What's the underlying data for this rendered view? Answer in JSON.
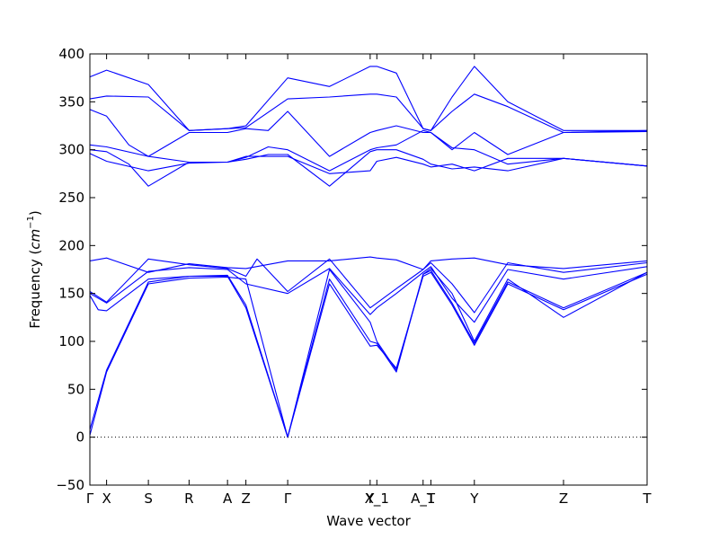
{
  "chart_data": {
    "type": "line",
    "xlabel": "Wave vector",
    "ylabel_text": "Frequency (",
    "ylabel_unit": "cm",
    "ylabel_exp": "−1",
    "ylabel_close": ")",
    "ylim": [
      -50,
      400
    ],
    "yticks": [
      -50,
      0,
      50,
      100,
      150,
      200,
      250,
      300,
      350,
      400
    ],
    "xlim": [
      0,
      100
    ],
    "x_ticks": [
      {
        "label": "Γ",
        "x": 0
      },
      {
        "label": "X",
        "x": 3
      },
      {
        "label": "S",
        "x": 10.5
      },
      {
        "label": "R",
        "x": 17.8
      },
      {
        "label": "A",
        "x": 24.7
      },
      {
        "label": "Z",
        "x": 28
      },
      {
        "label": "Γ",
        "x": 35.5
      },
      {
        "label": "Y",
        "x": 50.3
      },
      {
        "label": "X_1",
        "x": 51.5
      },
      {
        "label": "A_1",
        "x": 59.8
      },
      {
        "label": "T",
        "x": 61.2
      },
      {
        "label": "Y",
        "x": 69
      },
      {
        "label": "Z",
        "x": 85
      },
      {
        "label": "T",
        "x": 100
      }
    ],
    "zero_line": 0,
    "line_color": "#0000ff",
    "series": [
      {
        "x": [
          0,
          3,
          10.5,
          17.8,
          24.7,
          28,
          35.5,
          43,
          50.3,
          51.5,
          55,
          59.8,
          61.2,
          65,
          69,
          75,
          85,
          100
        ],
        "values": [
          376,
          383,
          368,
          320,
          322,
          325,
          375,
          366,
          387,
          387,
          380,
          322,
          320,
          355,
          387,
          350,
          320,
          320
        ]
      },
      {
        "x": [
          0,
          3,
          10.5,
          17.8,
          24.7,
          28,
          35.5,
          43,
          50.3,
          51.5,
          55,
          59.8,
          61.2,
          65,
          69,
          75,
          85,
          100
        ],
        "values": [
          353,
          356,
          355,
          320,
          322,
          323,
          353,
          355,
          358,
          358,
          355,
          322,
          320,
          340,
          358,
          345,
          318,
          319
        ]
      },
      {
        "x": [
          0,
          3,
          7,
          10.5,
          17.8,
          24.7,
          28,
          32,
          35.5,
          43,
          50.3,
          51.5,
          55,
          59.8,
          61.2,
          65,
          69,
          75,
          85,
          100
        ],
        "values": [
          342,
          335,
          305,
          293,
          318,
          318,
          322,
          320,
          340,
          293,
          318,
          320,
          325,
          318,
          318,
          300,
          318,
          295,
          318,
          320
        ]
      },
      {
        "x": [
          0,
          3,
          10.5,
          17.8,
          24.7,
          28,
          32,
          35.5,
          43,
          50.3,
          51.5,
          55,
          59.8,
          61.2,
          65,
          69,
          75,
          85,
          100
        ],
        "values": [
          305,
          303,
          293,
          287,
          287,
          292,
          303,
          300,
          278,
          300,
          302,
          305,
          320,
          318,
          302,
          300,
          285,
          291,
          283
        ]
      },
      {
        "x": [
          0,
          3,
          7,
          10.5,
          17.8,
          24.7,
          28,
          32,
          35.5,
          43,
          50.3,
          51.5,
          55,
          59.8,
          61.2,
          65,
          69,
          75,
          85,
          100
        ],
        "values": [
          300,
          298,
          285,
          262,
          287,
          287,
          290,
          295,
          295,
          262,
          298,
          300,
          300,
          290,
          285,
          280,
          282,
          278,
          291,
          283
        ]
      },
      {
        "x": [
          0,
          3,
          10.5,
          17.8,
          24.7,
          28,
          35.5,
          43,
          50.3,
          51.5,
          55,
          59.8,
          61.2,
          65,
          69,
          75,
          85,
          100
        ],
        "values": [
          296,
          288,
          278,
          286,
          287,
          293,
          293,
          275,
          278,
          288,
          292,
          285,
          282,
          285,
          278,
          291,
          291,
          283
        ]
      },
      {
        "x": [
          0,
          3,
          10.5,
          17.8,
          24.7,
          28,
          35.5,
          43,
          50.3,
          51.5,
          55,
          59.8,
          61.2,
          65,
          69,
          75,
          85,
          100
        ],
        "values": [
          184,
          187,
          172,
          181,
          177,
          176,
          184,
          184,
          188,
          187,
          185,
          175,
          184,
          186,
          187,
          180,
          176,
          184
        ]
      },
      {
        "x": [
          0,
          3,
          10.5,
          17.8,
          24.7,
          28,
          30,
          35.5,
          43,
          50.3,
          51.5,
          55,
          59.8,
          61.2,
          65,
          69,
          75,
          85,
          100
        ],
        "values": [
          152,
          141,
          186,
          180,
          176,
          168,
          186,
          152,
          186,
          135,
          140,
          155,
          175,
          182,
          160,
          130,
          182,
          172,
          182
        ]
      },
      {
        "x": [
          0,
          3,
          10.5,
          17.8,
          24.7,
          28,
          35.5,
          43,
          50.3,
          51.5,
          55,
          59.8,
          61.2,
          65,
          69,
          75,
          85,
          100
        ],
        "values": [
          150,
          140,
          173,
          177,
          175,
          160,
          150,
          176,
          128,
          135,
          150,
          172,
          178,
          145,
          120,
          175,
          165,
          178
        ]
      },
      {
        "x": [
          0,
          1.5,
          3,
          10.5,
          17.8,
          24.7,
          28,
          35.5,
          43,
          50.3,
          51.5,
          55,
          59.8,
          61.2,
          65,
          69,
          75,
          85,
          100
        ],
        "values": [
          148,
          133,
          132,
          165,
          168,
          169,
          138,
          0,
          175,
          120,
          100,
          70,
          170,
          176,
          150,
          100,
          165,
          125,
          172
        ]
      },
      {
        "x": [
          0,
          3,
          10.5,
          17.8,
          24.7,
          28,
          35.5,
          43,
          50.3,
          51.5,
          55,
          59.8,
          61.2,
          65,
          69,
          75,
          85,
          100
        ],
        "values": [
          8,
          70,
          162,
          168,
          168,
          135,
          0,
          165,
          100,
          98,
          68,
          170,
          174,
          140,
          98,
          162,
          135,
          172
        ]
      },
      {
        "x": [
          0,
          3,
          10.5,
          17.8,
          24.7,
          28,
          35.5,
          43,
          50.3,
          51.5,
          55,
          59.8,
          61.2,
          65,
          69,
          75,
          85,
          100
        ],
        "values": [
          2,
          68,
          160,
          166,
          167,
          165,
          0,
          160,
          95,
          96,
          72,
          168,
          172,
          138,
          96,
          160,
          133,
          170
        ]
      }
    ]
  }
}
